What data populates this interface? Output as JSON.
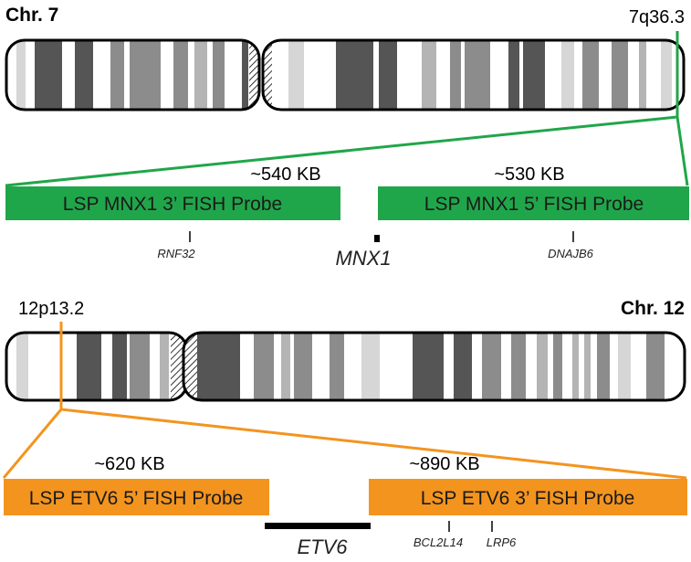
{
  "colors": {
    "green": "#20a64a",
    "orange": "#f3941f",
    "band_dark": "#555555",
    "band_mid": "#8c8c8c",
    "band_light": "#b4b4b4",
    "band_pale": "#d6d6d6"
  },
  "chr7": {
    "title": "Chr. 7",
    "locus": "7q36.3",
    "probes": [
      {
        "label": "LSP MNX1 3’ FISH Probe",
        "size": "~540 KB"
      },
      {
        "label": "LSP MNX1 5’ FISH Probe",
        "size": "~530 KB"
      }
    ],
    "genes": {
      "left": "RNF32",
      "center": "MNX1",
      "right": "DNAJB6"
    }
  },
  "chr12": {
    "title": "Chr. 12",
    "locus": "12p13.2",
    "probes": [
      {
        "label": "LSP ETV6 5’ FISH Probe",
        "size": "~620 KB"
      },
      {
        "label": "LSP ETV6 3’ FISH Probe",
        "size": "~890 KB"
      }
    ],
    "genes": {
      "center": "ETV6",
      "right1": "BCL2L14",
      "right2": "LRP6"
    }
  }
}
